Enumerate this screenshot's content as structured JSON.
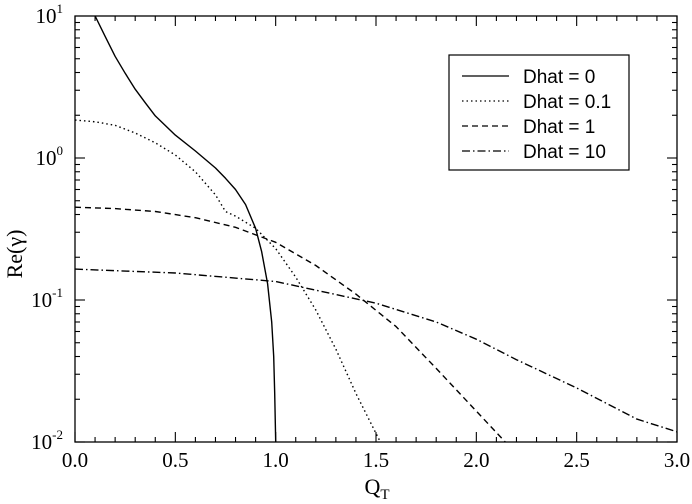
{
  "chart_data": {
    "type": "line",
    "xlabel": "Q",
    "xlabel_sub": "T",
    "ylabel": "Re(γ)",
    "xlim": [
      0.0,
      3.0
    ],
    "ylim": [
      0.01,
      10
    ],
    "yscale": "log",
    "grid": false,
    "legend_position": "top-right",
    "x_ticks": [
      "0.0",
      "0.5",
      "1.0",
      "1.5",
      "2.0",
      "2.5",
      "3.0"
    ],
    "y_ticks": [
      {
        "base": "10",
        "exp": "1",
        "value": 10
      },
      {
        "base": "10",
        "exp": "0",
        "value": 1
      },
      {
        "base": "10",
        "exp": "-1",
        "value": 0.1
      },
      {
        "base": "10",
        "exp": "-2",
        "value": 0.01
      }
    ],
    "series": [
      {
        "name": "Dhat = 0",
        "dash": "solid",
        "x": [
          0.1,
          0.15,
          0.2,
          0.25,
          0.3,
          0.35,
          0.4,
          0.5,
          0.6,
          0.7,
          0.75,
          0.8,
          0.85,
          0.9,
          0.93,
          0.96,
          0.98,
          0.99,
          0.995,
          1.0
        ],
        "y": [
          10,
          7.2,
          5.2,
          3.95,
          3.05,
          2.45,
          1.98,
          1.45,
          1.12,
          0.85,
          0.72,
          0.6,
          0.47,
          0.32,
          0.22,
          0.13,
          0.07,
          0.04,
          0.022,
          0.01
        ]
      },
      {
        "name": "Dhat = 0.1",
        "dash": "dotted",
        "x": [
          0.0,
          0.1,
          0.2,
          0.3,
          0.4,
          0.5,
          0.6,
          0.7,
          0.75,
          0.8,
          0.9,
          1.0,
          1.1,
          1.2,
          1.3,
          1.4,
          1.5,
          1.53
        ],
        "y": [
          1.85,
          1.8,
          1.7,
          1.5,
          1.28,
          1.05,
          0.8,
          0.55,
          0.42,
          0.39,
          0.32,
          0.23,
          0.145,
          0.085,
          0.045,
          0.022,
          0.0115,
          0.0095
        ]
      },
      {
        "name": "Dhat = 1",
        "dash": "dashed",
        "x": [
          0.0,
          0.2,
          0.4,
          0.6,
          0.8,
          1.0,
          1.2,
          1.4,
          1.6,
          1.8,
          2.0,
          2.15
        ],
        "y": [
          0.45,
          0.44,
          0.42,
          0.38,
          0.325,
          0.255,
          0.175,
          0.11,
          0.065,
          0.033,
          0.0165,
          0.0098
        ]
      },
      {
        "name": "Dhat = 10",
        "dash": "dashdot",
        "x": [
          0.0,
          0.5,
          1.0,
          1.5,
          1.8,
          2.0,
          2.2,
          2.5,
          2.8,
          3.0
        ],
        "y": [
          0.165,
          0.155,
          0.135,
          0.095,
          0.07,
          0.053,
          0.038,
          0.024,
          0.0145,
          0.0118
        ]
      }
    ]
  }
}
